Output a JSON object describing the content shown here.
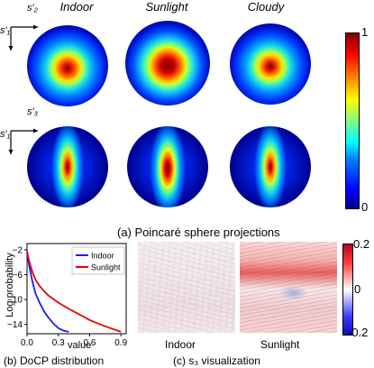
{
  "poincare": {
    "columns": [
      "Indoor",
      "Sunlight",
      "Cloudy"
    ],
    "row1_axes": {
      "vertical": "s′₁",
      "horizontal": "s′₂"
    },
    "row2_axes": {
      "vertical": "s′₁",
      "horizontal": "s′₃"
    },
    "colorbar_ticks": [
      "1",
      "0"
    ],
    "caption": "(a) Poincaré sphere projections",
    "colors": {
      "low": "#00008f",
      "high": "#800000"
    }
  },
  "docp": {
    "caption": "(b) DoCP distribution",
    "chart_data": {
      "type": "line",
      "xlabel": "value",
      "ylabel": "Log probability",
      "xlim": [
        0,
        0.95
      ],
      "ylim": [
        -15.5,
        -1
      ],
      "xticks": [
        "0.0",
        "0.3",
        "0.6",
        "0.9"
      ],
      "yticks": [
        "-2",
        "-6",
        "-10",
        "-14"
      ],
      "legend_position": "top-right",
      "series": [
        {
          "name": "Indoor",
          "color": "#1a1aff",
          "x": [
            0.0,
            0.02,
            0.05,
            0.08,
            0.12,
            0.16,
            0.2,
            0.25,
            0.3,
            0.35,
            0.4
          ],
          "y": [
            -2.5,
            -4.5,
            -7.0,
            -9.0,
            -10.5,
            -11.8,
            -12.8,
            -13.8,
            -14.6,
            -15.0,
            -15.2
          ]
        },
        {
          "name": "Sunlight",
          "color": "#e60000",
          "x": [
            0.0,
            0.02,
            0.05,
            0.08,
            0.12,
            0.16,
            0.2,
            0.3,
            0.4,
            0.5,
            0.6,
            0.7,
            0.8,
            0.9
          ],
          "y": [
            -2.2,
            -3.8,
            -5.5,
            -6.8,
            -7.8,
            -8.6,
            -9.3,
            -10.5,
            -11.5,
            -12.4,
            -13.3,
            -14.0,
            -14.6,
            -15.2
          ]
        }
      ]
    }
  },
  "s3vis": {
    "labels": [
      "Indoor",
      "Sunlight"
    ],
    "colorbar_ticks": [
      "0.2",
      "0",
      "-0.2"
    ],
    "caption": "(c) s₃ visualization"
  }
}
